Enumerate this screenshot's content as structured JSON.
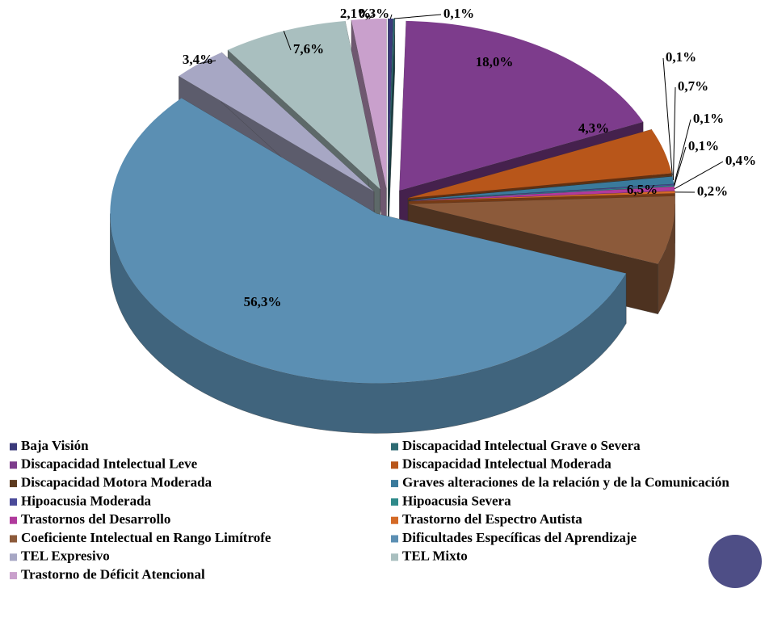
{
  "chart_data": {
    "type": "pie3d",
    "categories": [
      "Baja Visión",
      "Discapacidad Intelectual Grave o Severa",
      "Discapacidad Intelectual Leve",
      "Discapacidad Intelectual Moderada",
      "Discapacidad Motora Moderada",
      "Graves alteraciones de la relación y de la Comunicación",
      "Hipoacusia Moderada",
      "Hipoacusia Severa",
      "Trastornos del Desarrollo",
      "Trastorno del Espectro Autista",
      "Coeficiente Intelectual en Rango Limítrofe",
      "Dificultades Específicas del Aprendizaje",
      "TEL Expresivo",
      "TEL Mixto",
      "Trastorno de Déficit Atencional"
    ],
    "values": [
      0.3,
      0.1,
      18.0,
      4.3,
      0.1,
      0.7,
      0.1,
      0.1,
      0.4,
      0.2,
      6.5,
      56.3,
      3.4,
      7.6,
      2.1
    ],
    "value_labels": [
      "0,3%",
      "0,1%",
      "18,0%",
      "4,3%",
      "0,1%",
      "0,7%",
      "0,1%",
      "0,1%",
      "0,4%",
      "0,2%",
      "6,5%",
      "56,3%",
      "3,4%",
      "7,6%",
      "2,1%"
    ],
    "colors": [
      "#3b3a7a",
      "#2e6b73",
      "#7d3c8c",
      "#b8561a",
      "#5c3a1e",
      "#3a7a9c",
      "#4a4a99",
      "#2f8a8a",
      "#b03a9c",
      "#d46a26",
      "#8c5a3a",
      "#5b8fb3",
      "#a7a7c4",
      "#a9bfbf",
      "#c9a0cc"
    ]
  }
}
